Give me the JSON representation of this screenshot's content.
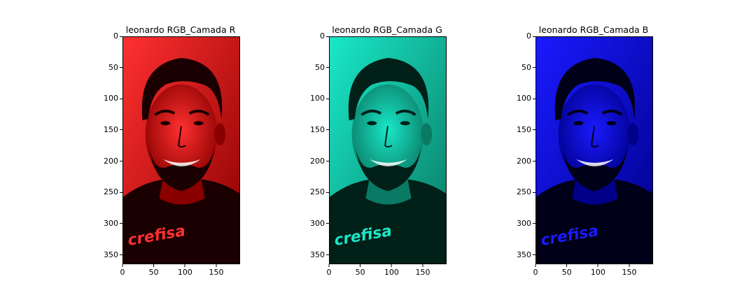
{
  "panels": [
    {
      "title": "leonardo RGB_Camada R",
      "tint": "#ff0000",
      "dark": "#1a0000",
      "mid": "#8a0000",
      "light": "#ff3030",
      "yticks": [
        "0",
        "50",
        "100",
        "150",
        "200",
        "250",
        "300",
        "350"
      ],
      "xticks": [
        "0",
        "50",
        "100",
        "150"
      ]
    },
    {
      "title": "leonardo RGB_Camada G",
      "tint": "#00e0c0",
      "dark": "#002018",
      "mid": "#0a7a64",
      "light": "#19e8c8",
      "yticks": [
        "0",
        "50",
        "100",
        "150",
        "200",
        "250",
        "300",
        "350"
      ],
      "xticks": [
        "0",
        "50",
        "100",
        "150"
      ]
    },
    {
      "title": "leonardo RGB_Camada B",
      "tint": "#0000ff",
      "dark": "#000018",
      "mid": "#00008a",
      "light": "#1a1aff",
      "yticks": [
        "0",
        "50",
        "100",
        "150",
        "200",
        "250",
        "300",
        "350"
      ],
      "xticks": [
        "0",
        "50",
        "100",
        "150"
      ]
    }
  ],
  "shirt_text": "crefisa"
}
